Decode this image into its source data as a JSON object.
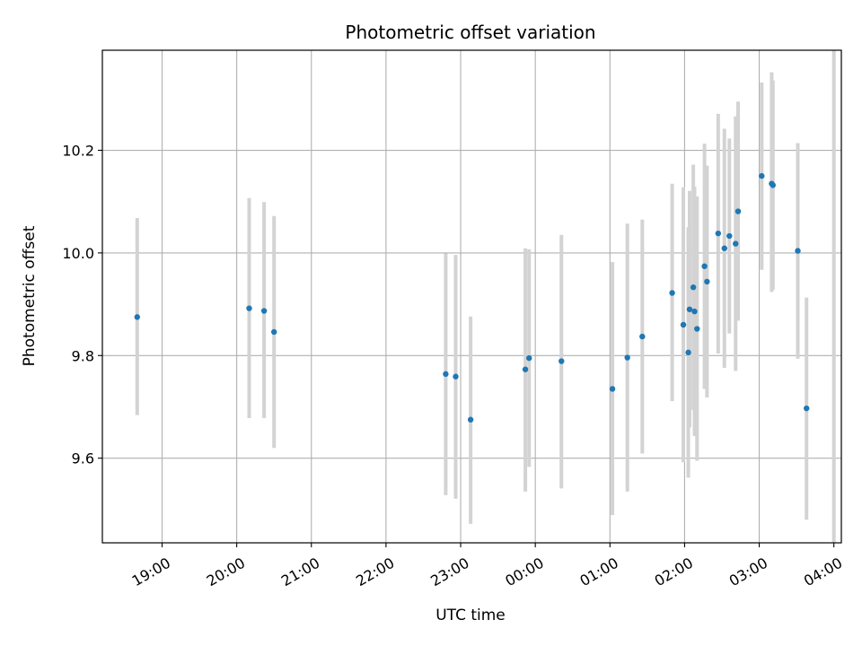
{
  "chart_data": {
    "type": "scatter",
    "title": "Photometric offset variation",
    "xlabel": "UTC time",
    "ylabel": "Photometric offset",
    "x_axis_type": "time",
    "xlim": [
      "18:12",
      "04:06"
    ],
    "ylim": [
      9.435,
      10.395
    ],
    "grid": true,
    "xticks": [
      "19:00",
      "20:00",
      "21:00",
      "22:00",
      "23:00",
      "00:00",
      "01:00",
      "02:00",
      "03:00",
      "04:00"
    ],
    "yticks": [
      "9.6",
      "9.8",
      "10.0",
      "10.2"
    ],
    "point_color": "#1f77b4",
    "errorbar_color": "#d3d3d3",
    "points": [
      {
        "time": "18:40",
        "y": 9.875,
        "err_low": 9.684,
        "err_high": 10.068
      },
      {
        "time": "20:10",
        "y": 9.892,
        "err_low": 9.678,
        "err_high": 10.107
      },
      {
        "time": "20:22",
        "y": 9.887,
        "err_low": 9.678,
        "err_high": 10.099
      },
      {
        "time": "20:30",
        "y": 9.846,
        "err_low": 9.62,
        "err_high": 10.072
      },
      {
        "time": "22:48",
        "y": 9.764,
        "err_low": 9.528,
        "err_high": 9.999
      },
      {
        "time": "22:56",
        "y": 9.759,
        "err_low": 9.521,
        "err_high": 9.996
      },
      {
        "time": "23:08",
        "y": 9.675,
        "err_low": 9.472,
        "err_high": 9.876
      },
      {
        "time": "23:52",
        "y": 9.773,
        "err_low": 9.535,
        "err_high": 10.009
      },
      {
        "time": "23:55",
        "y": 9.795,
        "err_low": 9.583,
        "err_high": 10.007
      },
      {
        "time": "00:21",
        "y": 9.789,
        "err_low": 9.541,
        "err_high": 10.035
      },
      {
        "time": "01:02",
        "y": 9.735,
        "err_low": 9.489,
        "err_high": 9.982
      },
      {
        "time": "01:14",
        "y": 9.796,
        "err_low": 9.535,
        "err_high": 10.057
      },
      {
        "time": "01:26",
        "y": 9.837,
        "err_low": 9.609,
        "err_high": 10.065
      },
      {
        "time": "01:50",
        "y": 9.922,
        "err_low": 9.711,
        "err_high": 10.135
      },
      {
        "time": "01:59",
        "y": 9.86,
        "err_low": 9.592,
        "err_high": 10.128
      },
      {
        "time": "02:03",
        "y": 9.806,
        "err_low": 9.562,
        "err_high": 10.05
      },
      {
        "time": "02:04",
        "y": 9.89,
        "err_low": 9.66,
        "err_high": 10.121
      },
      {
        "time": "02:07",
        "y": 9.933,
        "err_low": 9.694,
        "err_high": 10.172
      },
      {
        "time": "02:08",
        "y": 9.886,
        "err_low": 9.643,
        "err_high": 10.129
      },
      {
        "time": "02:10",
        "y": 9.852,
        "err_low": 9.595,
        "err_high": 10.11
      },
      {
        "time": "02:16",
        "y": 9.974,
        "err_low": 9.735,
        "err_high": 10.213
      },
      {
        "time": "02:18",
        "y": 9.944,
        "err_low": 9.718,
        "err_high": 10.17
      },
      {
        "time": "02:27",
        "y": 10.038,
        "err_low": 9.804,
        "err_high": 10.271
      },
      {
        "time": "02:32",
        "y": 10.009,
        "err_low": 9.776,
        "err_high": 10.242
      },
      {
        "time": "02:36",
        "y": 10.033,
        "err_low": 9.843,
        "err_high": 10.223
      },
      {
        "time": "02:41",
        "y": 10.018,
        "err_low": 9.77,
        "err_high": 10.266
      },
      {
        "time": "02:43",
        "y": 10.081,
        "err_low": 9.868,
        "err_high": 10.295
      },
      {
        "time": "03:02",
        "y": 10.15,
        "err_low": 9.967,
        "err_high": 10.332
      },
      {
        "time": "03:10",
        "y": 10.135,
        "err_low": 9.924,
        "err_high": 10.352
      },
      {
        "time": "03:11",
        "y": 10.132,
        "err_low": 9.928,
        "err_high": 10.336
      },
      {
        "time": "03:31",
        "y": 10.004,
        "err_low": 9.794,
        "err_high": 10.214
      },
      {
        "time": "03:38",
        "y": 9.697,
        "err_low": 9.48,
        "err_high": 9.913
      },
      {
        "time": "04:00",
        "y": null,
        "err_low": 9.435,
        "err_high": 10.395
      }
    ]
  }
}
